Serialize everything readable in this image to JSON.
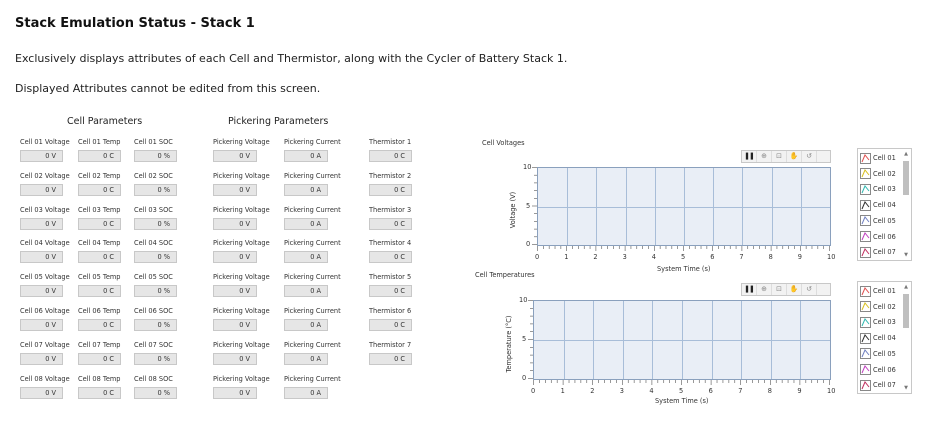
{
  "page": {
    "title": "Stack Emulation Status - Stack 1",
    "description": "Exclusively displays attributes of each Cell and Thermistor, along with the Cycler of Battery Stack 1.",
    "note": "Displayed Attributes cannot be edited from this screen."
  },
  "sections": {
    "cell_params": "Cell Parameters",
    "pickering_params": "Pickering Parameters"
  },
  "rows": [
    {
      "v_label": "Cell 01 Voltage",
      "v_val": "0 V",
      "t_label": "Cell 01 Temp",
      "t_val": "0 C",
      "s_label": "Cell 01 SOC",
      "s_val": "0 %",
      "pv_label": "Pickering Voltage",
      "pv_val": "0 V",
      "pc_label": "Pickering Current",
      "pc_val": "0 A",
      "th_label": "Thermistor 1",
      "th_val": "0 C"
    },
    {
      "v_label": "Cell 02 Voltage",
      "v_val": "0 V",
      "t_label": "Cell 02 Temp",
      "t_val": "0 C",
      "s_label": "Cell 02 SOC",
      "s_val": "0 %",
      "pv_label": "Pickering Voltage",
      "pv_val": "0 V",
      "pc_label": "Pickering Current",
      "pc_val": "0 A",
      "th_label": "Thermistor 2",
      "th_val": "0 C"
    },
    {
      "v_label": "Cell 03 Voltage",
      "v_val": "0 V",
      "t_label": "Cell 03 Temp",
      "t_val": "0 C",
      "s_label": "Cell 03 SOC",
      "s_val": "0 %",
      "pv_label": "Pickering Voltage",
      "pv_val": "0 V",
      "pc_label": "Pickering Current",
      "pc_val": "0 A",
      "th_label": "Thermistor 3",
      "th_val": "0 C"
    },
    {
      "v_label": "Cell 04 Voltage",
      "v_val": "0 V",
      "t_label": "Cell 04 Temp",
      "t_val": "0 C",
      "s_label": "Cell 04 SOC",
      "s_val": "0 %",
      "pv_label": "Pickering Voltage",
      "pv_val": "0 V",
      "pc_label": "Pickering Current",
      "pc_val": "0 A",
      "th_label": "Thermistor 4",
      "th_val": "0 C"
    },
    {
      "v_label": "Cell 05 Voltage",
      "v_val": "0 V",
      "t_label": "Cell 05 Temp",
      "t_val": "0 C",
      "s_label": "Cell 05 SOC",
      "s_val": "0 %",
      "pv_label": "Pickering Voltage",
      "pv_val": "0 V",
      "pc_label": "Pickering Current",
      "pc_val": "0 A",
      "th_label": "Thermistor 5",
      "th_val": "0 C"
    },
    {
      "v_label": "Cell 06 Voltage",
      "v_val": "0 V",
      "t_label": "Cell 06 Temp",
      "t_val": "0 C",
      "s_label": "Cell 06 SOC",
      "s_val": "0 %",
      "pv_label": "Pickering Voltage",
      "pv_val": "0 V",
      "pc_label": "Pickering Current",
      "pc_val": "0 A",
      "th_label": "Thermistor 6",
      "th_val": "0 C"
    },
    {
      "v_label": "Cell 07 Voltage",
      "v_val": "0 V",
      "t_label": "Cell 07 Temp",
      "t_val": "0 C",
      "s_label": "Cell 07 SOC",
      "s_val": "0 %",
      "pv_label": "Pickering Voltage",
      "pv_val": "0 V",
      "pc_label": "Pickering Current",
      "pc_val": "0 A",
      "th_label": "Thermistor 7",
      "th_val": "0 C"
    },
    {
      "v_label": "Cell 08 Voltage",
      "v_val": "0 V",
      "t_label": "Cell 08 Temp",
      "t_val": "0 C",
      "s_label": "Cell 08 SOC",
      "s_val": "0 %",
      "pv_label": "Pickering Voltage",
      "pv_val": "0 V",
      "pc_label": "Pickering Current",
      "pc_val": "0 A",
      "th_label": "",
      "th_val": ""
    }
  ],
  "toolbar_icons": [
    "pause-icon",
    "zoom-icon",
    "zoom-box-icon",
    "pan-icon",
    "reset-icon"
  ],
  "chart_data": [
    {
      "type": "line",
      "title": "Cell Voltages",
      "xlabel": "System Time (s)",
      "ylabel": "Voltage (V)",
      "xlim": [
        0,
        10
      ],
      "ylim": [
        0,
        10
      ],
      "x_ticks": [
        "0",
        "1",
        "2",
        "3",
        "4",
        "5",
        "6",
        "7",
        "8",
        "9",
        "10"
      ],
      "y_ticks": [
        "0",
        "5",
        "10"
      ],
      "grid": true,
      "legend_position": "right",
      "series": [
        {
          "name": "Cell 01",
          "color": "#e05050",
          "values": []
        },
        {
          "name": "Cell 02",
          "color": "#d8c020",
          "values": []
        },
        {
          "name": "Cell 03",
          "color": "#30b8b0",
          "values": []
        },
        {
          "name": "Cell 04",
          "color": "#303030",
          "values": []
        },
        {
          "name": "Cell 05",
          "color": "#7080c0",
          "values": []
        },
        {
          "name": "Cell 06",
          "color": "#c040c0",
          "values": []
        },
        {
          "name": "Cell 07",
          "color": "#c03060",
          "values": []
        }
      ]
    },
    {
      "type": "line",
      "title": "Cell Temperatures",
      "xlabel": "System Time (s)",
      "ylabel": "Temperature (°C)",
      "xlim": [
        0,
        10
      ],
      "ylim": [
        0,
        10
      ],
      "x_ticks": [
        "0",
        "1",
        "2",
        "3",
        "4",
        "5",
        "6",
        "7",
        "8",
        "9",
        "10"
      ],
      "y_ticks": [
        "0",
        "5",
        "10"
      ],
      "grid": true,
      "legend_position": "right",
      "series": [
        {
          "name": "Cell 01",
          "color": "#e05050",
          "values": []
        },
        {
          "name": "Cell 02",
          "color": "#d8c020",
          "values": []
        },
        {
          "name": "Cell 03",
          "color": "#30b8b0",
          "values": []
        },
        {
          "name": "Cell 04",
          "color": "#303030",
          "values": []
        },
        {
          "name": "Cell 05",
          "color": "#7080c0",
          "values": []
        },
        {
          "name": "Cell 06",
          "color": "#c040c0",
          "values": []
        },
        {
          "name": "Cell 07",
          "color": "#c03060",
          "values": []
        }
      ]
    }
  ]
}
